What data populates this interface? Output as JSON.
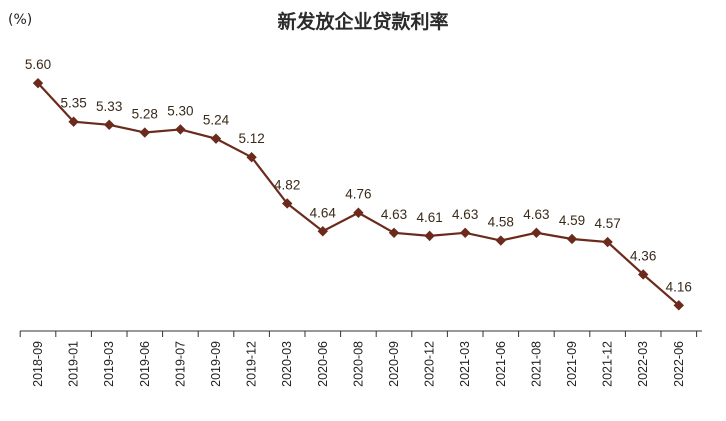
{
  "chart_data": {
    "type": "line",
    "title": "新发放企业贷款利率",
    "unit_label": "(%)",
    "xlabel": "",
    "ylabel": "",
    "ylim": [
      4.0,
      5.75
    ],
    "grid": false,
    "line_color": "#6b2a1c",
    "categories": [
      "2018-09",
      "2019-01",
      "2019-03",
      "2019-06",
      "2019-07",
      "2019-09",
      "2019-12",
      "2020-03",
      "2020-06",
      "2020-08",
      "2020-09",
      "2020-12",
      "2021-03",
      "2021-06",
      "2021-08",
      "2021-09",
      "2021-12",
      "2022-03",
      "2022-06"
    ],
    "values": [
      5.6,
      5.35,
      5.33,
      5.28,
      5.3,
      5.24,
      5.12,
      4.82,
      4.64,
      4.76,
      4.63,
      4.61,
      4.63,
      4.58,
      4.63,
      4.59,
      4.57,
      4.36,
      4.16
    ],
    "value_labels": [
      "5.60",
      "5.35",
      "5.33",
      "5.28",
      "5.30",
      "5.24",
      "5.12",
      "4.82",
      "4.64",
      "4.76",
      "4.63",
      "4.61",
      "4.63",
      "4.58",
      "4.63",
      "4.59",
      "4.57",
      "4.36",
      "4.16"
    ]
  }
}
